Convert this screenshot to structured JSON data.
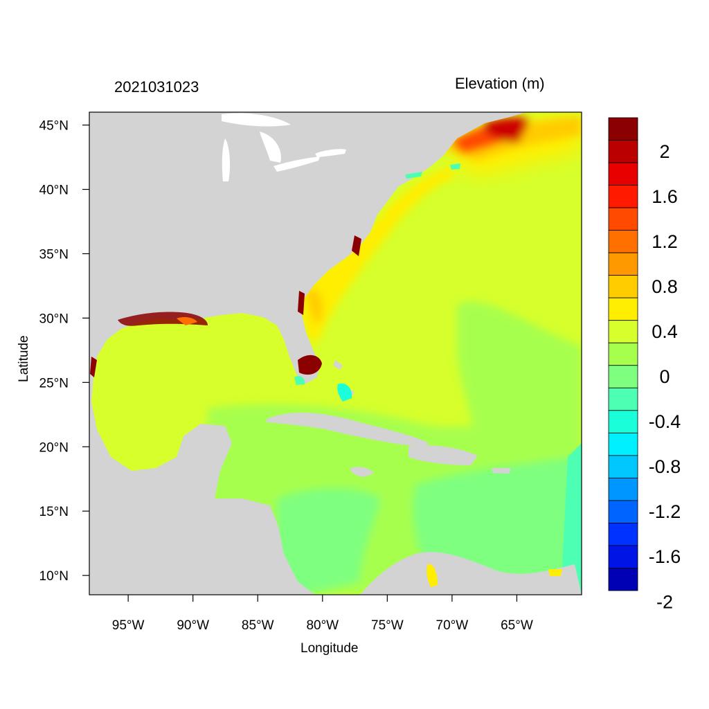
{
  "map": {
    "date_label": "2021031023",
    "variable_label": "Elevation (m)",
    "xlabel": "Longitude",
    "ylabel": "Latitude",
    "lon_ticks": [
      "95°W",
      "90°W",
      "85°W",
      "80°W",
      "75°W",
      "70°W",
      "65°W"
    ],
    "lat_ticks": [
      "45°N",
      "40°N",
      "35°N",
      "30°N",
      "25°N",
      "20°N",
      "15°N",
      "10°N"
    ],
    "lon_range": [
      -98,
      -60
    ],
    "lat_range": [
      8.5,
      46
    ],
    "land_color": "#d3d3d3",
    "colorbar": {
      "colors": [
        "#8b0000",
        "#bb0000",
        "#e80000",
        "#ff1a00",
        "#ff4a00",
        "#ff7000",
        "#ff9900",
        "#ffcc00",
        "#ffee00",
        "#d6ff2b",
        "#a7ff4d",
        "#7fff80",
        "#4dffb3",
        "#1affd9",
        "#00f0ff",
        "#00c8ff",
        "#0096ff",
        "#0064ff",
        "#0032ff",
        "#0014e6",
        "#0000b4"
      ],
      "labels": [
        "2",
        "1.6",
        "1.2",
        "0.8",
        "0.4",
        "0",
        "-0.4",
        "-0.8",
        "-1.2",
        "-1.6",
        "-2"
      ]
    }
  }
}
